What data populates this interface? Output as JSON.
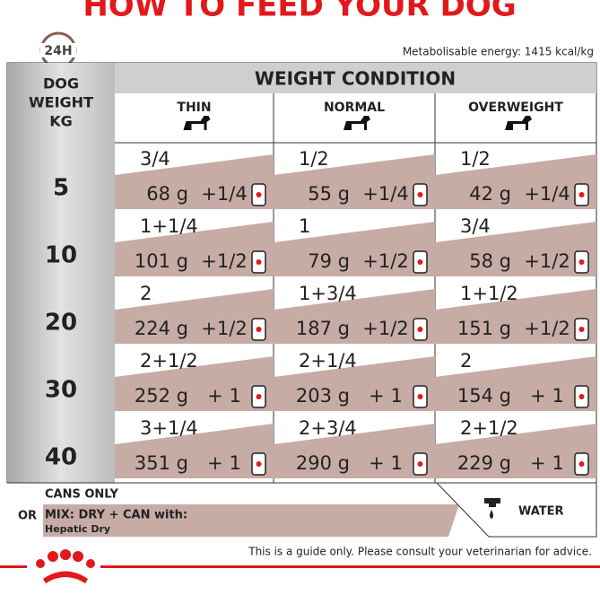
{
  "title": "HOW TO FEED YOUR DOG",
  "clock": "24H",
  "energy": "Metabolisable energy: 1415 kcal/kg",
  "table": {
    "weight_header": [
      "DOG",
      "WEIGHT",
      "KG"
    ],
    "condition_header": "WEIGHT CONDITION",
    "columns": [
      "THIN",
      "NORMAL",
      "OVERWEIGHT"
    ],
    "rows": [
      {
        "weight": 5,
        "cells": [
          {
            "cans": "3/4",
            "dry": "68 g",
            "plus": "+1/4"
          },
          {
            "cans": "1/2",
            "dry": "55 g",
            "plus": "+1/4"
          },
          {
            "cans": "1/2",
            "dry": "42 g",
            "plus": "+1/4"
          }
        ]
      },
      {
        "weight": 10,
        "cells": [
          {
            "cans": "1+1/4",
            "dry": "101 g",
            "plus": "+1/2"
          },
          {
            "cans": "1",
            "dry": "79 g",
            "plus": "+1/2"
          },
          {
            "cans": "3/4",
            "dry": "58 g",
            "plus": "+1/2"
          }
        ]
      },
      {
        "weight": 20,
        "cells": [
          {
            "cans": "2",
            "dry": "224 g",
            "plus": "+1/2"
          },
          {
            "cans": "1+3/4",
            "dry": "187 g",
            "plus": "+1/2"
          },
          {
            "cans": "1+1/2",
            "dry": "151 g",
            "plus": "+1/2"
          }
        ]
      },
      {
        "weight": 30,
        "cells": [
          {
            "cans": "2+1/2",
            "dry": "252 g",
            "plus": "+ 1"
          },
          {
            "cans": "2+1/4",
            "dry": "203 g",
            "plus": "+ 1"
          },
          {
            "cans": "2",
            "dry": "154 g",
            "plus": "+ 1"
          }
        ]
      },
      {
        "weight": 40,
        "cells": [
          {
            "cans": "3+1/4",
            "dry": "351 g",
            "plus": "+ 1"
          },
          {
            "cans": "2+3/4",
            "dry": "290 g",
            "plus": "+ 1"
          },
          {
            "cans": "2+1/2",
            "dry": "229 g",
            "plus": "+ 1"
          }
        ]
      }
    ]
  },
  "legend": {
    "cans_only": "CANS ONLY",
    "or": "OR",
    "mix": "MIX: DRY + CAN with:",
    "dry_name": "Hepatic Dry",
    "water": "WATER"
  },
  "disclaimer": "This is a guide only. Please consult your veterinarian for advice."
}
